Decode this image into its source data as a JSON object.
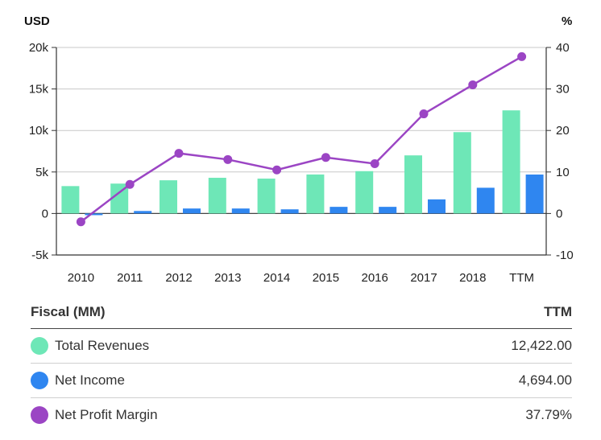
{
  "chart_data": {
    "type": "bar+line",
    "categories": [
      "2010",
      "2011",
      "2012",
      "2013",
      "2014",
      "2015",
      "2016",
      "2017",
      "2018",
      "TTM"
    ],
    "left_unit": "USD",
    "right_unit": "%",
    "left_ticks": [
      "20k",
      "15k",
      "10k",
      "5k",
      "0",
      "-5k"
    ],
    "right_ticks": [
      "40",
      "30",
      "20",
      "10",
      "0",
      "-10"
    ],
    "left_ylim": [
      -5000,
      20000
    ],
    "right_ylim": [
      -10,
      40
    ],
    "grid": true,
    "series": [
      {
        "name": "Total Revenues",
        "type": "bar",
        "axis": "left",
        "color": "#6ee7b7",
        "values": [
          3300,
          3600,
          4000,
          4300,
          4200,
          4700,
          5100,
          7000,
          9800,
          12422
        ]
      },
      {
        "name": "Net Income",
        "type": "bar",
        "axis": "left",
        "color": "#2f86f0",
        "values": [
          -200,
          300,
          600,
          600,
          500,
          800,
          800,
          1700,
          3100,
          4694
        ]
      },
      {
        "name": "Net Profit Margin",
        "type": "line",
        "axis": "right",
        "color": "#9b45c4",
        "values": [
          -2,
          7,
          14.5,
          13,
          10.5,
          13.5,
          12,
          24,
          31,
          37.79
        ]
      }
    ]
  },
  "table": {
    "header_left": "Fiscal (MM)",
    "header_right": "TTM",
    "rows": [
      {
        "label": "Total Revenues",
        "value": "12,422.00",
        "color": "#6ee7b7"
      },
      {
        "label": "Net Income",
        "value": "4,694.00",
        "color": "#2f86f0"
      },
      {
        "label": "Net Profit Margin",
        "value": "37.79%",
        "color": "#9b45c4"
      }
    ]
  }
}
